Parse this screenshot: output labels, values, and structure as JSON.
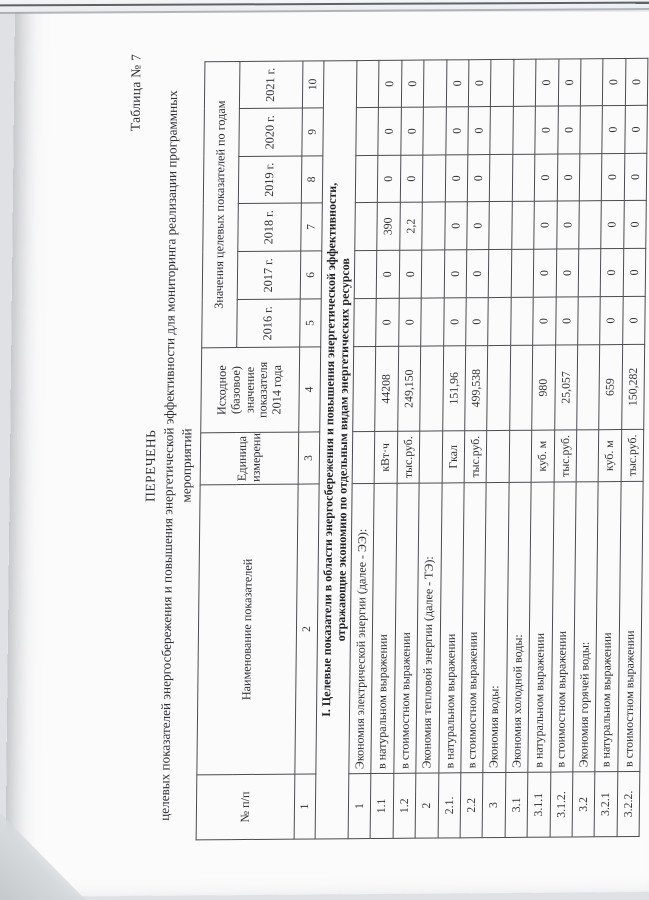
{
  "page": {
    "table_label": "Таблица № 7",
    "title": "ПЕРЕЧЕНЬ",
    "subtitle_line1": "целевых показателей энергосбережения и повышения энергетической эффективности для мониторинга реализации программных",
    "subtitle_line2": "мероприятий"
  },
  "table": {
    "headers": {
      "num": "№ п/п",
      "name": "Наименование показателей",
      "unit": "Единица измерения",
      "base": "Исходное (базовое) значение показателя 2014 года",
      "years_group": "Значения целевых показателей по годам",
      "years": [
        "2016 г.",
        "2017 г.",
        "2018 г.",
        "2019 г.",
        "2020 г.",
        "2021 г."
      ],
      "col_numbers": [
        "1",
        "2",
        "3",
        "4",
        "5",
        "6",
        "7",
        "8",
        "9",
        "10"
      ]
    },
    "section_line1": "I. Целевые показатели в области энергосбережения и повышения энергетической эффективности,",
    "section_line2": "отражающие экономию по отдельным видам энергетических ресурсов",
    "rows": [
      {
        "num": "1",
        "name": "Экономия электрической энергии (далее - ЭЭ):",
        "unit": "",
        "base": "",
        "values": [
          "",
          "",
          "",
          "",
          "",
          ""
        ]
      },
      {
        "num": "1.1",
        "name": "в натуральном выражении",
        "unit": "кВт·ч",
        "base": "44208",
        "values": [
          "0",
          "0",
          "390",
          "0",
          "0",
          "0"
        ]
      },
      {
        "num": "1.2",
        "name": "в стоимостном выражении",
        "unit": "тыс.руб.",
        "base": "249,150",
        "values": [
          "0",
          "0",
          "2,2",
          "0",
          "0",
          "0"
        ]
      },
      {
        "num": "2",
        "name": "Экономия тепловой энергии (далее - ТЭ):",
        "unit": "",
        "base": "",
        "values": [
          "",
          "",
          "",
          "",
          "",
          ""
        ]
      },
      {
        "num": "2.1.",
        "name": "в натуральном выражении",
        "unit": "Гкал",
        "base": "151,96",
        "values": [
          "0",
          "0",
          "0",
          "0",
          "0",
          "0"
        ]
      },
      {
        "num": "2.2",
        "name": "в стоимостном выражении",
        "unit": "тыс.руб.",
        "base": "499,538",
        "values": [
          "0",
          "0",
          "0",
          "0",
          "0",
          "0"
        ]
      },
      {
        "num": "3",
        "name": "Экономия воды:",
        "unit": "",
        "base": "",
        "values": [
          "",
          "",
          "",
          "",
          "",
          ""
        ]
      },
      {
        "num": "3.1",
        "name": "Экономия холодной воды:",
        "unit": "",
        "base": "",
        "values": [
          "",
          "",
          "",
          "",
          "",
          ""
        ]
      },
      {
        "num": "3.1.1",
        "name": "в натуральном выражении",
        "unit": "куб. м",
        "base": "980",
        "values": [
          "0",
          "0",
          "0",
          "0",
          "0",
          "0"
        ]
      },
      {
        "num": "3.1.2.",
        "name": "в стоимостном выражении",
        "unit": "тыс.руб.",
        "base": "25,057",
        "values": [
          "0",
          "0",
          "0",
          "0",
          "0",
          "0"
        ]
      },
      {
        "num": "3.2",
        "name": "Экономия горячей воды:",
        "unit": "",
        "base": "",
        "values": [
          "",
          "",
          "",
          "",
          "",
          ""
        ]
      },
      {
        "num": "3.2.1",
        "name": "в натуральном выражении",
        "unit": "куб. м",
        "base": "659",
        "values": [
          "0",
          "0",
          "0",
          "0",
          "0",
          "0"
        ]
      },
      {
        "num": "3.2.2.",
        "name": "в стоимостном выражении",
        "unit": "тыс.руб.",
        "base": "150,282",
        "values": [
          "0",
          "0",
          "0",
          "0",
          "0",
          "0"
        ]
      }
    ]
  },
  "colors": {
    "paper": "#fbfbfc",
    "ink": "#2e2f33",
    "table_border": "#4b4c50",
    "scanner_background": "#dfe1e4",
    "scanner_edge_line": "#5d6268"
  }
}
